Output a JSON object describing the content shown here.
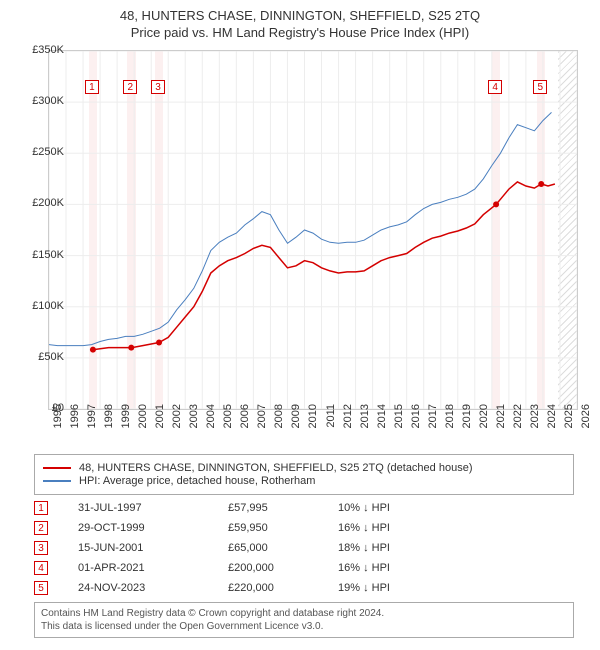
{
  "title": {
    "main": "48, HUNTERS CHASE, DINNINGTON, SHEFFIELD, S25 2TQ",
    "sub": "Price paid vs. HM Land Registry's House Price Index (HPI)",
    "fontsize": 13,
    "color": "#333333"
  },
  "chart": {
    "type": "line",
    "background": "#ffffff",
    "border_color": "#cccccc",
    "grid_color": "#ededed",
    "x": {
      "min": 1995,
      "max": 2026,
      "ticks": [
        1995,
        1996,
        1997,
        1998,
        1999,
        2000,
        2001,
        2002,
        2003,
        2004,
        2005,
        2006,
        2007,
        2008,
        2009,
        2010,
        2011,
        2012,
        2013,
        2014,
        2015,
        2016,
        2017,
        2018,
        2019,
        2020,
        2021,
        2022,
        2023,
        2024,
        2025,
        2026
      ]
    },
    "y": {
      "min": 0,
      "max": 350000,
      "tick_step": 50000,
      "labels": [
        "£0",
        "£50K",
        "£100K",
        "£150K",
        "£200K",
        "£250K",
        "£300K",
        "£350K"
      ]
    },
    "future_hatch_from": 2024.9,
    "sale_band_halfwidth_years": 0.25,
    "series": [
      {
        "id": "hpi",
        "label": "HPI: Average price, detached house, Rotherham",
        "color": "#4a7fbf",
        "width": 1,
        "points": [
          [
            1995.0,
            63000
          ],
          [
            1995.5,
            62000
          ],
          [
            1996.0,
            62000
          ],
          [
            1996.5,
            62000
          ],
          [
            1997.0,
            62000
          ],
          [
            1997.5,
            63000
          ],
          [
            1998.0,
            66000
          ],
          [
            1998.5,
            68000
          ],
          [
            1999.0,
            69000
          ],
          [
            1999.5,
            71000
          ],
          [
            2000.0,
            71000
          ],
          [
            2000.5,
            73000
          ],
          [
            2001.0,
            76000
          ],
          [
            2001.5,
            79000
          ],
          [
            2002.0,
            85000
          ],
          [
            2002.5,
            97000
          ],
          [
            2003.0,
            107000
          ],
          [
            2003.5,
            118000
          ],
          [
            2004.0,
            135000
          ],
          [
            2004.5,
            155000
          ],
          [
            2005.0,
            163000
          ],
          [
            2005.5,
            168000
          ],
          [
            2006.0,
            172000
          ],
          [
            2006.5,
            180000
          ],
          [
            2007.0,
            186000
          ],
          [
            2007.5,
            193000
          ],
          [
            2008.0,
            190000
          ],
          [
            2008.5,
            175000
          ],
          [
            2009.0,
            162000
          ],
          [
            2009.5,
            168000
          ],
          [
            2010.0,
            175000
          ],
          [
            2010.5,
            172000
          ],
          [
            2011.0,
            166000
          ],
          [
            2011.5,
            163000
          ],
          [
            2012.0,
            162000
          ],
          [
            2012.5,
            163000
          ],
          [
            2013.0,
            163000
          ],
          [
            2013.5,
            165000
          ],
          [
            2014.0,
            170000
          ],
          [
            2014.5,
            175000
          ],
          [
            2015.0,
            178000
          ],
          [
            2015.5,
            180000
          ],
          [
            2016.0,
            183000
          ],
          [
            2016.5,
            190000
          ],
          [
            2017.0,
            196000
          ],
          [
            2017.5,
            200000
          ],
          [
            2018.0,
            202000
          ],
          [
            2018.5,
            205000
          ],
          [
            2019.0,
            207000
          ],
          [
            2019.5,
            210000
          ],
          [
            2020.0,
            215000
          ],
          [
            2020.5,
            225000
          ],
          [
            2021.0,
            238000
          ],
          [
            2021.5,
            250000
          ],
          [
            2022.0,
            265000
          ],
          [
            2022.5,
            278000
          ],
          [
            2023.0,
            275000
          ],
          [
            2023.5,
            272000
          ],
          [
            2024.0,
            282000
          ],
          [
            2024.5,
            290000
          ]
        ]
      },
      {
        "id": "property",
        "label": "48, HUNTERS CHASE, DINNINGTON, SHEFFIELD, S25 2TQ (detached house)",
        "color": "#d40000",
        "width": 1.5,
        "points": [
          [
            1997.58,
            57995
          ],
          [
            1998.0,
            59000
          ],
          [
            1998.5,
            60000
          ],
          [
            1999.0,
            60000
          ],
          [
            1999.83,
            59950
          ],
          [
            2000.5,
            62000
          ],
          [
            2001.46,
            65000
          ],
          [
            2002.0,
            70000
          ],
          [
            2002.5,
            80000
          ],
          [
            2003.0,
            90000
          ],
          [
            2003.5,
            100000
          ],
          [
            2004.0,
            115000
          ],
          [
            2004.5,
            133000
          ],
          [
            2005.0,
            140000
          ],
          [
            2005.5,
            145000
          ],
          [
            2006.0,
            148000
          ],
          [
            2006.5,
            152000
          ],
          [
            2007.0,
            157000
          ],
          [
            2007.5,
            160000
          ],
          [
            2008.0,
            158000
          ],
          [
            2008.5,
            148000
          ],
          [
            2009.0,
            138000
          ],
          [
            2009.5,
            140000
          ],
          [
            2010.0,
            145000
          ],
          [
            2010.5,
            143000
          ],
          [
            2011.0,
            138000
          ],
          [
            2011.5,
            135000
          ],
          [
            2012.0,
            133000
          ],
          [
            2012.5,
            134000
          ],
          [
            2013.0,
            134000
          ],
          [
            2013.5,
            135000
          ],
          [
            2014.0,
            140000
          ],
          [
            2014.5,
            145000
          ],
          [
            2015.0,
            148000
          ],
          [
            2015.5,
            150000
          ],
          [
            2016.0,
            152000
          ],
          [
            2016.5,
            158000
          ],
          [
            2017.0,
            163000
          ],
          [
            2017.5,
            167000
          ],
          [
            2018.0,
            169000
          ],
          [
            2018.5,
            172000
          ],
          [
            2019.0,
            174000
          ],
          [
            2019.5,
            177000
          ],
          [
            2020.0,
            181000
          ],
          [
            2020.5,
            190000
          ],
          [
            2021.25,
            200000
          ],
          [
            2021.5,
            205000
          ],
          [
            2022.0,
            215000
          ],
          [
            2022.5,
            222000
          ],
          [
            2023.0,
            218000
          ],
          [
            2023.5,
            216000
          ],
          [
            2023.9,
            220000
          ],
          [
            2024.3,
            218000
          ],
          [
            2024.7,
            220000
          ]
        ]
      }
    ],
    "sales": [
      {
        "n": "1",
        "year": 1997.58,
        "date": "31-JUL-1997",
        "price": "£57,995",
        "diff": "10% ↓ HPI",
        "y": 57995
      },
      {
        "n": "2",
        "year": 1999.83,
        "date": "29-OCT-1999",
        "price": "£59,950",
        "diff": "16% ↓ HPI",
        "y": 59950
      },
      {
        "n": "3",
        "year": 2001.46,
        "date": "15-JUN-2001",
        "price": "£65,000",
        "diff": "18% ↓ HPI",
        "y": 65000
      },
      {
        "n": "4",
        "year": 2021.25,
        "date": "01-APR-2021",
        "price": "£200,000",
        "diff": "16% ↓ HPI",
        "y": 200000
      },
      {
        "n": "5",
        "year": 2023.9,
        "date": "24-NOV-2023",
        "price": "£220,000",
        "diff": "19% ↓ HPI",
        "y": 220000
      }
    ],
    "label_fontsize": 11
  },
  "footer": {
    "line1": "Contains HM Land Registry data © Crown copyright and database right 2024.",
    "line2": "This data is licensed under the Open Government Licence v3.0."
  }
}
